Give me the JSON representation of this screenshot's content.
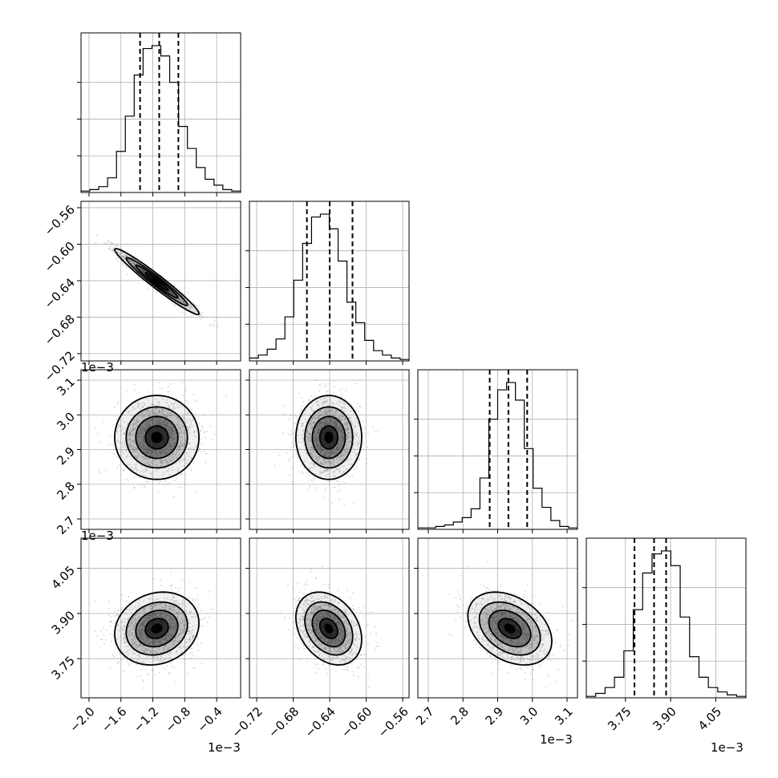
{
  "chart_data": {
    "type": "corner",
    "parameters": [
      {
        "range": [
          -2.1,
          -0.1
        ],
        "tick_values": [
          -2.0,
          -1.6,
          -1.2,
          -0.8,
          -0.4
        ],
        "tick_labels": [
          "−2.0",
          "−1.6",
          "−1.2",
          "−0.8",
          "−0.4"
        ],
        "offset_text": "1e−3",
        "quantiles": [
          -1.36,
          -1.12,
          -0.88
        ]
      },
      {
        "range": [
          -0.728,
          -0.553
        ],
        "tick_values": [
          -0.72,
          -0.68,
          -0.64,
          -0.6,
          -0.56
        ],
        "tick_labels": [
          "−0.72",
          "−0.68",
          "−0.64",
          "−0.60",
          "−0.56"
        ],
        "offset_text": "1e−3",
        "quantiles": [
          -0.665,
          -0.64,
          -0.615
        ]
      },
      {
        "range": [
          2.67,
          3.13
        ],
        "tick_values": [
          2.7,
          2.8,
          2.9,
          3.0,
          3.1
        ],
        "tick_labels": [
          "2.7",
          "2.8",
          "2.9",
          "3.0",
          "3.1"
        ],
        "offset_text": "1e−3",
        "quantiles": [
          2.877,
          2.931,
          2.985
        ]
      },
      {
        "range": [
          3.62,
          4.15
        ],
        "tick_values": [
          3.75,
          3.9,
          4.05
        ],
        "tick_labels": [
          "3.75",
          "3.90",
          "4.05"
        ],
        "offset_text": "1e−3",
        "quantiles": [
          3.78,
          3.845,
          3.885
        ]
      }
    ],
    "histograms": [
      [
        1,
        2,
        4,
        10,
        28,
        52,
        80,
        98,
        100,
        93,
        75,
        45,
        30,
        17,
        9,
        5,
        2,
        1
      ],
      [
        2,
        4,
        8,
        15,
        30,
        55,
        80,
        98,
        100,
        90,
        68,
        40,
        26,
        14,
        7,
        4,
        2,
        1
      ],
      [
        1,
        1,
        2,
        3,
        5,
        8,
        14,
        35,
        75,
        95,
        100,
        88,
        55,
        28,
        15,
        6,
        2,
        1
      ],
      [
        1,
        3,
        7,
        14,
        32,
        60,
        85,
        98,
        100,
        90,
        55,
        28,
        14,
        7,
        4,
        2,
        1
      ]
    ],
    "pairs": [
      {
        "i": 1,
        "j": 0,
        "mean": [
          -1.15,
          -0.641
        ],
        "sd": [
          0.24,
          0.0164
        ],
        "rho": -0.97
      },
      {
        "i": 2,
        "j": 0,
        "mean": [
          -1.15,
          2.935
        ],
        "sd": [
          0.24,
          0.055
        ],
        "rho": 0.0
      },
      {
        "i": 2,
        "j": 1,
        "mean": [
          -0.641,
          2.935
        ],
        "sd": [
          0.0164,
          0.055
        ],
        "rho": 0.0
      },
      {
        "i": 3,
        "j": 0,
        "mean": [
          -1.15,
          3.85
        ],
        "sd": [
          0.24,
          0.055
        ],
        "rho": 0.15
      },
      {
        "i": 3,
        "j": 1,
        "mean": [
          -0.641,
          3.85
        ],
        "sd": [
          0.0164,
          0.055
        ],
        "rho": -0.3
      },
      {
        "i": 3,
        "j": 2,
        "mean": [
          2.935,
          3.85
        ],
        "sd": [
          0.055,
          0.055
        ],
        "rho": -0.35
      }
    ],
    "grid": true,
    "colors": {
      "points": "#9a9a9a",
      "lines": "#000000",
      "density": "#000000",
      "grid": "#b0b0b0"
    }
  }
}
